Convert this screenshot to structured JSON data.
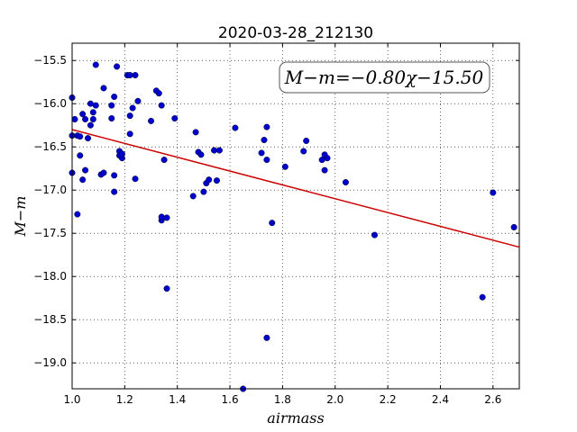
{
  "chart_data": {
    "type": "scatter",
    "title": "2020-03-28_212130",
    "xlabel": "airmass",
    "ylabel": "M−m",
    "xlim": [
      1.0,
      2.7
    ],
    "ylim": [
      -19.3,
      -15.3
    ],
    "x_ticks": [
      1.0,
      1.2,
      1.4,
      1.6,
      1.8,
      2.0,
      2.2,
      2.4,
      2.6
    ],
    "x_tick_labels": [
      "1.0",
      "1.2",
      "1.4",
      "1.6",
      "1.8",
      "2.0",
      "2.2",
      "2.4",
      "2.6"
    ],
    "y_ticks": [
      -19.0,
      -18.5,
      -18.0,
      -17.5,
      -17.0,
      -16.5,
      -16.0,
      -15.5
    ],
    "y_tick_labels": [
      "−19.0",
      "−18.5",
      "−18.0",
      "−17.5",
      "−17.0",
      "−16.5",
      "−16.0",
      "−15.5"
    ],
    "grid": true,
    "annotation": "M−m=−0.80χ−15.50",
    "fit": {
      "slope": -0.8,
      "intercept": -15.5,
      "color": "#cc0000"
    },
    "point_color": "#0000cc",
    "points": [
      [
        1.0,
        -15.93
      ],
      [
        1.01,
        -16.18
      ],
      [
        1.0,
        -16.37
      ],
      [
        1.0,
        -16.8
      ],
      [
        1.02,
        -16.37
      ],
      [
        1.03,
        -16.38
      ],
      [
        1.02,
        -17.28
      ],
      [
        1.04,
        -16.12
      ],
      [
        1.05,
        -16.18
      ],
      [
        1.03,
        -16.6
      ],
      [
        1.04,
        -16.88
      ],
      [
        1.05,
        -16.77
      ],
      [
        1.06,
        -16.4
      ],
      [
        1.07,
        -16.0
      ],
      [
        1.07,
        -16.25
      ],
      [
        1.08,
        -16.1
      ],
      [
        1.08,
        -16.18
      ],
      [
        1.09,
        -15.55
      ],
      [
        1.09,
        -16.02
      ],
      [
        1.11,
        -16.82
      ],
      [
        1.12,
        -16.8
      ],
      [
        1.12,
        -15.82
      ],
      [
        1.15,
        -16.02
      ],
      [
        1.15,
        -16.17
      ],
      [
        1.16,
        -15.92
      ],
      [
        1.16,
        -16.83
      ],
      [
        1.16,
        -17.02
      ],
      [
        1.17,
        -15.57
      ],
      [
        1.18,
        -16.6
      ],
      [
        1.18,
        -16.55
      ],
      [
        1.19,
        -16.63
      ],
      [
        1.19,
        -16.58
      ],
      [
        1.21,
        -15.67
      ],
      [
        1.22,
        -15.67
      ],
      [
        1.22,
        -16.14
      ],
      [
        1.22,
        -16.35
      ],
      [
        1.23,
        -16.05
      ],
      [
        1.24,
        -15.67
      ],
      [
        1.24,
        -16.87
      ],
      [
        1.25,
        -15.97
      ],
      [
        1.3,
        -16.2
      ],
      [
        1.32,
        -15.85
      ],
      [
        1.33,
        -15.88
      ],
      [
        1.34,
        -16.02
      ],
      [
        1.34,
        -17.35
      ],
      [
        1.34,
        -17.31
      ],
      [
        1.35,
        -16.65
      ],
      [
        1.36,
        -17.32
      ],
      [
        1.36,
        -18.14
      ],
      [
        1.39,
        -16.17
      ],
      [
        1.46,
        -17.07
      ],
      [
        1.47,
        -16.33
      ],
      [
        1.48,
        -16.56
      ],
      [
        1.49,
        -16.59
      ],
      [
        1.5,
        -17.02
      ],
      [
        1.51,
        -16.92
      ],
      [
        1.52,
        -16.88
      ],
      [
        1.54,
        -16.54
      ],
      [
        1.55,
        -16.89
      ],
      [
        1.56,
        -16.54
      ],
      [
        1.62,
        -16.28
      ],
      [
        1.65,
        -19.3
      ],
      [
        1.72,
        -16.57
      ],
      [
        1.73,
        -16.42
      ],
      [
        1.74,
        -16.27
      ],
      [
        1.74,
        -16.65
      ],
      [
        1.74,
        -18.71
      ],
      [
        1.76,
        -17.38
      ],
      [
        1.81,
        -16.73
      ],
      [
        1.88,
        -16.55
      ],
      [
        1.89,
        -16.43
      ],
      [
        1.95,
        -16.65
      ],
      [
        1.96,
        -16.59
      ],
      [
        1.96,
        -16.77
      ],
      [
        1.97,
        -16.63
      ],
      [
        2.04,
        -16.91
      ],
      [
        2.15,
        -17.52
      ],
      [
        2.56,
        -18.24
      ],
      [
        2.6,
        -17.03
      ],
      [
        2.68,
        -17.43
      ]
    ]
  }
}
